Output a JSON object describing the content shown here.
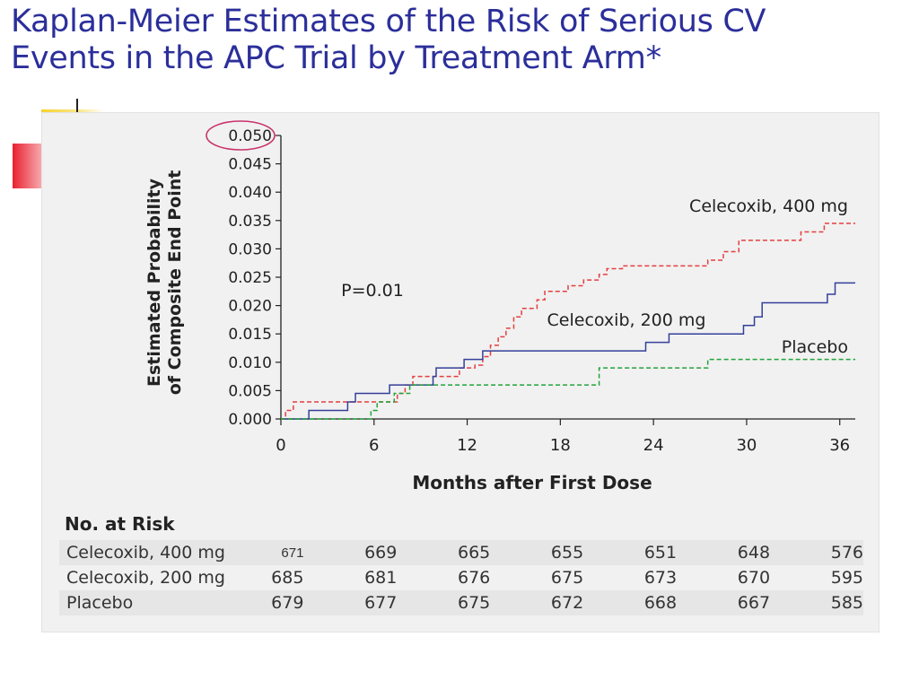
{
  "slide": {
    "title_line1": "Kaplan-Meier Estimates of the Risk of Serious CV",
    "title_line2": "Events in the APC Trial by Treatment Arm*"
  },
  "chart_data": {
    "type": "line",
    "title": "",
    "xlabel": "Months after First Dose",
    "ylabel_line1": "Estimated Probability",
    "ylabel_line2": "of Composite End Point",
    "xlim": [
      0,
      37
    ],
    "ylim": [
      0,
      0.05
    ],
    "x_ticks": [
      "0",
      "6",
      "12",
      "18",
      "24",
      "30",
      "36"
    ],
    "y_ticks": [
      "0.000",
      "0.005",
      "0.010",
      "0.015",
      "0.020",
      "0.025",
      "0.030",
      "0.035",
      "0.040",
      "0.045",
      "0.050"
    ],
    "highlighted_tick": "0.050",
    "annotation": "P=0.01",
    "grid": false,
    "colors": {
      "celecoxib400": "#e53e3e",
      "celecoxib200": "#34409a",
      "placebo": "#22a33a",
      "highlight": "#c8336a"
    },
    "series": [
      {
        "name": "Celecoxib, 400 mg",
        "key": "celecoxib400",
        "style": "dashed",
        "points": [
          [
            0,
            0
          ],
          [
            0.3,
            0.0015
          ],
          [
            0.8,
            0.003
          ],
          [
            7,
            0.003
          ],
          [
            7.5,
            0.0045
          ],
          [
            8,
            0.006
          ],
          [
            8.5,
            0.0075
          ],
          [
            11,
            0.0075
          ],
          [
            11.5,
            0.009
          ],
          [
            12.5,
            0.0095
          ],
          [
            13,
            0.011
          ],
          [
            13.5,
            0.013
          ],
          [
            14,
            0.0145
          ],
          [
            14.5,
            0.016
          ],
          [
            15,
            0.018
          ],
          [
            15.5,
            0.0195
          ],
          [
            16.5,
            0.021
          ],
          [
            17,
            0.0225
          ],
          [
            18.5,
            0.0235
          ],
          [
            19.5,
            0.0245
          ],
          [
            20.5,
            0.0255
          ],
          [
            21,
            0.0265
          ],
          [
            22,
            0.027
          ],
          [
            27,
            0.027
          ],
          [
            27.5,
            0.028
          ],
          [
            28.5,
            0.0295
          ],
          [
            29.5,
            0.0315
          ],
          [
            33,
            0.0315
          ],
          [
            33.5,
            0.033
          ],
          [
            35,
            0.0345
          ],
          [
            37,
            0.0345
          ]
        ]
      },
      {
        "name": "Celecoxib, 200 mg",
        "key": "celecoxib200",
        "style": "solid",
        "points": [
          [
            0,
            0
          ],
          [
            1.8,
            0.0015
          ],
          [
            4.3,
            0.003
          ],
          [
            4.8,
            0.0045
          ],
          [
            6.5,
            0.0045
          ],
          [
            7,
            0.006
          ],
          [
            9.8,
            0.0075
          ],
          [
            10,
            0.009
          ],
          [
            11.8,
            0.0105
          ],
          [
            13,
            0.012
          ],
          [
            23,
            0.012
          ],
          [
            23.5,
            0.0135
          ],
          [
            25,
            0.015
          ],
          [
            29,
            0.015
          ],
          [
            29.8,
            0.0165
          ],
          [
            30.5,
            0.018
          ],
          [
            31,
            0.0205
          ],
          [
            35,
            0.0205
          ],
          [
            35.2,
            0.022
          ],
          [
            35.7,
            0.024
          ],
          [
            37,
            0.024
          ]
        ]
      },
      {
        "name": "Placebo",
        "key": "placebo",
        "style": "dashed",
        "points": [
          [
            0,
            0
          ],
          [
            5.5,
            0
          ],
          [
            5.8,
            0.0015
          ],
          [
            6.2,
            0.003
          ],
          [
            7.3,
            0.0045
          ],
          [
            8.3,
            0.006
          ],
          [
            20,
            0.006
          ],
          [
            20.5,
            0.009
          ],
          [
            27,
            0.009
          ],
          [
            27.5,
            0.0105
          ],
          [
            37,
            0.0105
          ]
        ]
      }
    ]
  },
  "risk_table": {
    "title": "No. at Risk",
    "rows": [
      {
        "arm": "Celecoxib, 400 mg",
        "values": [
          "671",
          "669",
          "665",
          "655",
          "651",
          "648",
          "576"
        ]
      },
      {
        "arm": "Celecoxib, 200 mg",
        "values": [
          "685",
          "681",
          "676",
          "675",
          "673",
          "670",
          "595"
        ]
      },
      {
        "arm": "Placebo",
        "values": [
          "679",
          "677",
          "675",
          "672",
          "668",
          "667",
          "585"
        ]
      }
    ]
  }
}
